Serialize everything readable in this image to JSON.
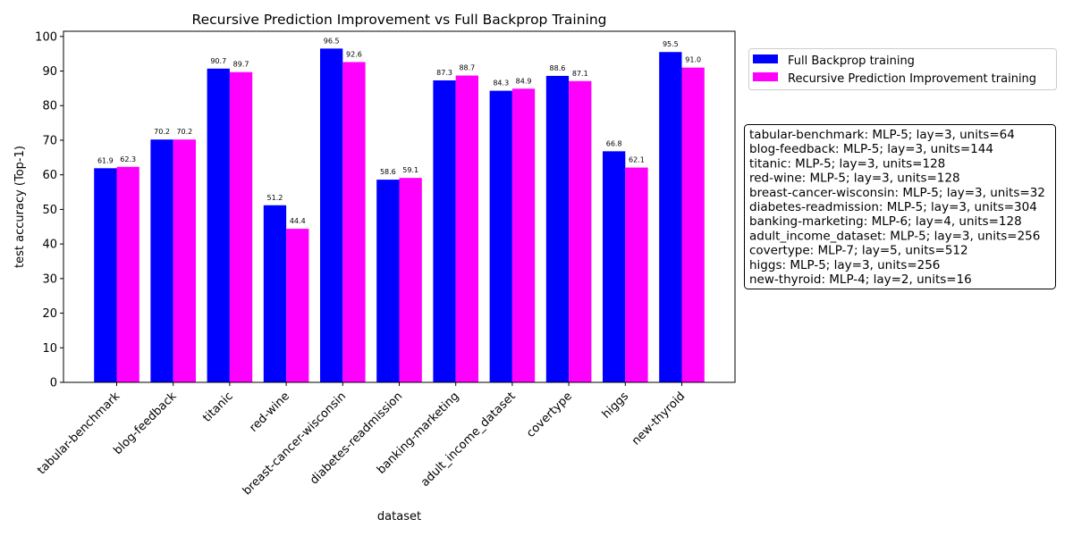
{
  "chart_data": {
    "type": "bar",
    "title": "Recursive Prediction Improvement vs Full Backprop Training",
    "xlabel": "dataset",
    "ylabel": "test accuracy (Top-1)",
    "ylim": [
      0,
      101.5
    ],
    "yticks": [
      0,
      10,
      20,
      30,
      40,
      50,
      60,
      70,
      80,
      90,
      100
    ],
    "grid": false,
    "legend_position": "upper-right-outside",
    "categories": [
      "tabular-benchmark",
      "blog-feedback",
      "titanic",
      "red-wine",
      "breast-cancer-wisconsin",
      "diabetes-readmission",
      "banking-marketing",
      "adult_income_dataset",
      "covertype",
      "higgs",
      "new-thyroid"
    ],
    "series": [
      {
        "name": "Full Backprop training",
        "color": "#0000ff",
        "values": [
          61.9,
          70.2,
          90.7,
          51.2,
          96.5,
          58.6,
          87.3,
          84.3,
          88.6,
          66.8,
          95.5
        ],
        "labels": [
          "61.9",
          "70.2",
          "90.7",
          "51.2",
          "96.5",
          "58.6",
          "87.3",
          "84.3",
          "88.6",
          "66.8",
          "95.5"
        ]
      },
      {
        "name": "Recursive Prediction Improvement training",
        "color": "#ff00ff",
        "values": [
          62.3,
          70.2,
          89.7,
          44.4,
          92.6,
          59.1,
          88.7,
          84.9,
          87.1,
          62.1,
          91.0
        ],
        "labels": [
          "62.3",
          "70.2",
          "89.7",
          "44.4",
          "92.6",
          "59.1",
          "88.7",
          "84.9",
          "87.1",
          "62.1",
          "91.0"
        ]
      }
    ],
    "annotation_lines": [
      "tabular-benchmark: MLP-5; lay=3, units=64",
      "blog-feedback: MLP-5; lay=3, units=144",
      "titanic: MLP-5; lay=3, units=128",
      "red-wine: MLP-5; lay=3, units=128",
      "breast-cancer-wisconsin: MLP-5; lay=3, units=32",
      "diabetes-readmission: MLP-5; lay=3, units=304",
      "banking-marketing: MLP-6; lay=4, units=128",
      "adult_income_dataset: MLP-5; lay=3, units=256",
      "covertype: MLP-7; lay=5, units=512",
      "higgs: MLP-5; lay=3, units=256",
      "new-thyroid: MLP-4; lay=2, units=16"
    ]
  }
}
